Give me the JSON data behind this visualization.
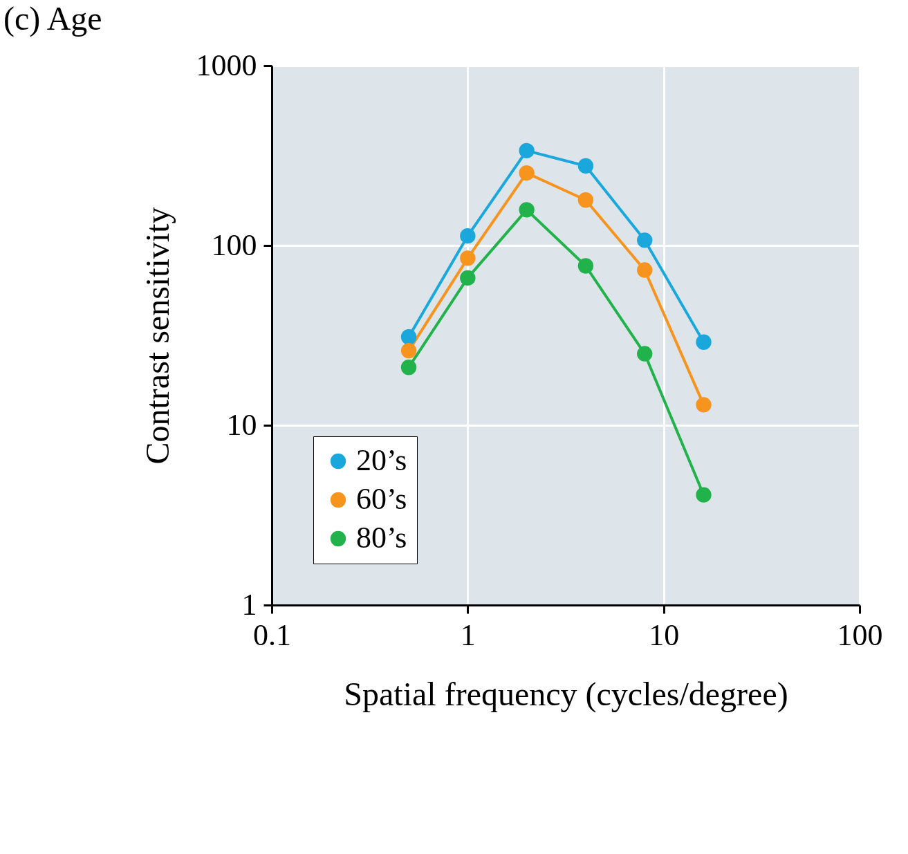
{
  "chart_data": {
    "type": "line",
    "title": "(c) Age",
    "xlabel": "Spatial frequency (cycles/degree)",
    "ylabel": "Contrast sensitivity",
    "x": [
      0.5,
      1,
      2,
      4,
      8,
      16
    ],
    "series": [
      {
        "name": "20’s",
        "color": "#1aa7dc",
        "values": [
          31,
          113,
          337,
          277,
          107,
          29
        ]
      },
      {
        "name": "60’s",
        "color": "#f7941d",
        "values": [
          26,
          85,
          253,
          179,
          73,
          13
        ]
      },
      {
        "name": "80’s",
        "color": "#22b24c",
        "values": [
          21,
          66,
          158,
          77,
          25,
          4.1
        ]
      }
    ],
    "xlim": [
      0.1,
      100
    ],
    "ylim": [
      1,
      1000
    ],
    "xticks": [
      0.1,
      1,
      10,
      100
    ],
    "yticks": [
      1,
      10,
      100,
      1000
    ],
    "log": "xy",
    "grid": true,
    "legend": "bottom left",
    "marker": "circle",
    "line_style": "solid"
  }
}
